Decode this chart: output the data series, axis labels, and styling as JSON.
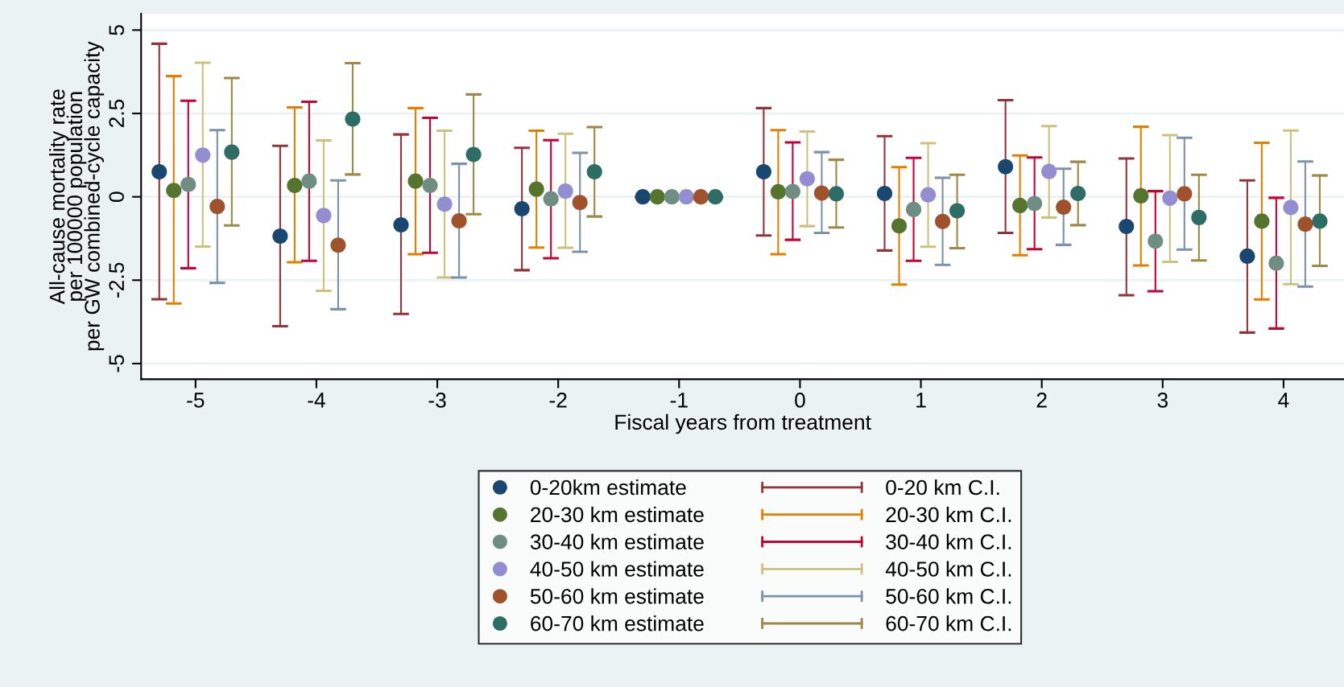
{
  "chart_data": {
    "type": "scatter",
    "xlabel": "Fiscal years from treatment",
    "ylabel": "All-cause mortality rate\nper 100000 population\nper GW combined-cycle capacity",
    "xlim": [
      -5.45,
      4.5
    ],
    "xticks": [
      -5,
      -4,
      -3,
      -2,
      -1,
      0,
      1,
      2,
      3,
      4
    ],
    "ylim": [
      -5.47,
      5.49
    ],
    "yticks": [
      -5,
      -2.5,
      0,
      2.5,
      5
    ],
    "grid": "y",
    "legend": "bottom",
    "marker": "circle",
    "series": [
      {
        "name": "0-20km estimate",
        "color": "#1a476f",
        "x": [
          -5.3,
          -4.3,
          -3.3,
          -2.3,
          -1.3,
          -0.3,
          0.7,
          1.7,
          2.7,
          3.7
        ],
        "values": [
          0.75,
          -1.18,
          -0.84,
          -0.36,
          0,
          0.75,
          0.1,
          0.9,
          -0.89,
          -1.78
        ]
      },
      {
        "name": "20-30 km estimate",
        "color": "#55752f",
        "x": [
          -5.18,
          -4.18,
          -3.18,
          -2.18,
          -1.18,
          -0.18,
          0.82,
          1.82,
          2.82,
          3.82
        ],
        "values": [
          0.19,
          0.34,
          0.47,
          0.23,
          0,
          0.15,
          -0.87,
          -0.26,
          0.03,
          -0.73
        ]
      },
      {
        "name": "30-40 km estimate",
        "color": "#6e8e84",
        "x": [
          -5.06,
          -4.06,
          -3.06,
          -2.06,
          -1.06,
          -0.06,
          0.94,
          1.94,
          2.94,
          3.94
        ],
        "values": [
          0.37,
          0.47,
          0.34,
          -0.06,
          0,
          0.16,
          -0.38,
          -0.2,
          -1.33,
          -1.99
        ]
      },
      {
        "name": "40-50 km estimate",
        "color": "#938dd2",
        "x": [
          -4.94,
          -3.94,
          -2.94,
          -1.94,
          -0.94,
          0.06,
          1.06,
          2.06,
          3.06,
          4.06
        ],
        "values": [
          1.25,
          -0.56,
          -0.22,
          0.17,
          0,
          0.54,
          0.06,
          0.76,
          -0.04,
          -0.32
        ]
      },
      {
        "name": "50-60 km estimate",
        "color": "#a0522d",
        "x": [
          -4.82,
          -3.82,
          -2.82,
          -1.82,
          -0.82,
          0.18,
          1.18,
          2.18,
          3.18,
          4.18
        ],
        "values": [
          -0.29,
          -1.45,
          -0.72,
          -0.17,
          0,
          0.11,
          -0.74,
          -0.31,
          0.09,
          -0.82
        ]
      },
      {
        "name": "60-70 km estimate",
        "color": "#2d6d66",
        "x": [
          -4.7,
          -3.7,
          -2.7,
          -1.7,
          -0.7,
          0.3,
          1.3,
          2.3,
          3.3,
          4.3
        ],
        "values": [
          1.34,
          2.33,
          1.27,
          0.75,
          0,
          0.09,
          -0.42,
          0.1,
          -0.62,
          -0.73
        ]
      },
      {
        "name": "0-20 km C.I.",
        "type": "bar",
        "color": "#90353b",
        "x": [
          -5.3,
          -4.3,
          -3.3,
          -2.3,
          -1.3,
          -0.3,
          0.7,
          1.7,
          2.7,
          3.7
        ],
        "base": [
          -3.07,
          -3.88,
          -3.51,
          -2.2,
          0,
          -1.16,
          -1.61,
          -1.08,
          -2.95,
          -4.07
        ],
        "values": [
          7.66,
          5.41,
          5.38,
          3.67,
          0,
          3.82,
          3.43,
          3.98,
          4.1,
          4.56
        ]
      },
      {
        "name": "20-30 km C.I.",
        "type": "bar",
        "color": "#e37e00",
        "x": [
          -5.18,
          -4.18,
          -3.18,
          -2.18,
          -1.18,
          -0.18,
          0.82,
          1.82,
          2.82,
          3.82
        ],
        "base": [
          -3.2,
          -1.96,
          -1.72,
          -1.52,
          0,
          -1.72,
          -2.63,
          -1.75,
          -2.06,
          -3.08
        ],
        "values": [
          6.82,
          4.64,
          4.38,
          3.5,
          0,
          3.72,
          3.52,
          2.99,
          4.16,
          4.7
        ]
      },
      {
        "name": "30-40 km C.I.",
        "type": "bar",
        "color": "#c10534",
        "x": [
          -5.06,
          -4.06,
          -3.06,
          -2.06,
          -1.06,
          -0.06,
          0.94,
          1.94,
          2.94,
          3.94
        ],
        "base": [
          -2.14,
          -1.92,
          -1.68,
          -1.84,
          0,
          -1.29,
          -1.92,
          -1.57,
          -2.83,
          -3.95
        ],
        "values": [
          5.02,
          4.77,
          4.05,
          3.54,
          0,
          2.92,
          3.09,
          2.75,
          3.0,
          3.92
        ]
      },
      {
        "name": "40-50 km C.I.",
        "type": "bar",
        "color": "#cac27e",
        "x": [
          -4.94,
          -3.94,
          -2.94,
          -1.94,
          -0.94,
          0.06,
          1.06,
          2.06,
          3.06,
          4.06
        ],
        "base": [
          -1.49,
          -2.82,
          -2.42,
          -1.53,
          0,
          -0.88,
          -1.5,
          -0.62,
          -1.95,
          -2.62
        ],
        "values": [
          5.51,
          4.51,
          4.4,
          3.42,
          0,
          2.84,
          3.11,
          2.74,
          3.8,
          4.61
        ]
      },
      {
        "name": "50-60 km C.I.",
        "type": "bar",
        "color": "#7b92a8",
        "x": [
          -4.82,
          -3.82,
          -2.82,
          -1.82,
          -0.82,
          0.18,
          1.18,
          2.18,
          3.18,
          4.18
        ],
        "base": [
          -2.58,
          -3.37,
          -2.42,
          -1.65,
          0,
          -1.08,
          -2.04,
          -1.44,
          -1.58,
          -2.69
        ],
        "values": [
          4.58,
          3.86,
          3.41,
          2.97,
          0,
          2.42,
          2.61,
          2.28,
          3.35,
          3.75
        ]
      },
      {
        "name": "60-70 km C.I.",
        "type": "bar",
        "color": "#9c8847",
        "x": [
          -4.7,
          -3.7,
          -2.7,
          -1.7,
          -0.7,
          0.3,
          1.3,
          2.3,
          3.3,
          4.3
        ],
        "base": [
          -0.86,
          0.67,
          -0.52,
          -0.59,
          0,
          -0.92,
          -1.54,
          -0.85,
          -1.91,
          -2.07
        ],
        "values": [
          4.42,
          3.34,
          3.59,
          2.68,
          0,
          2.03,
          2.2,
          1.9,
          2.57,
          2.71
        ]
      }
    ]
  }
}
